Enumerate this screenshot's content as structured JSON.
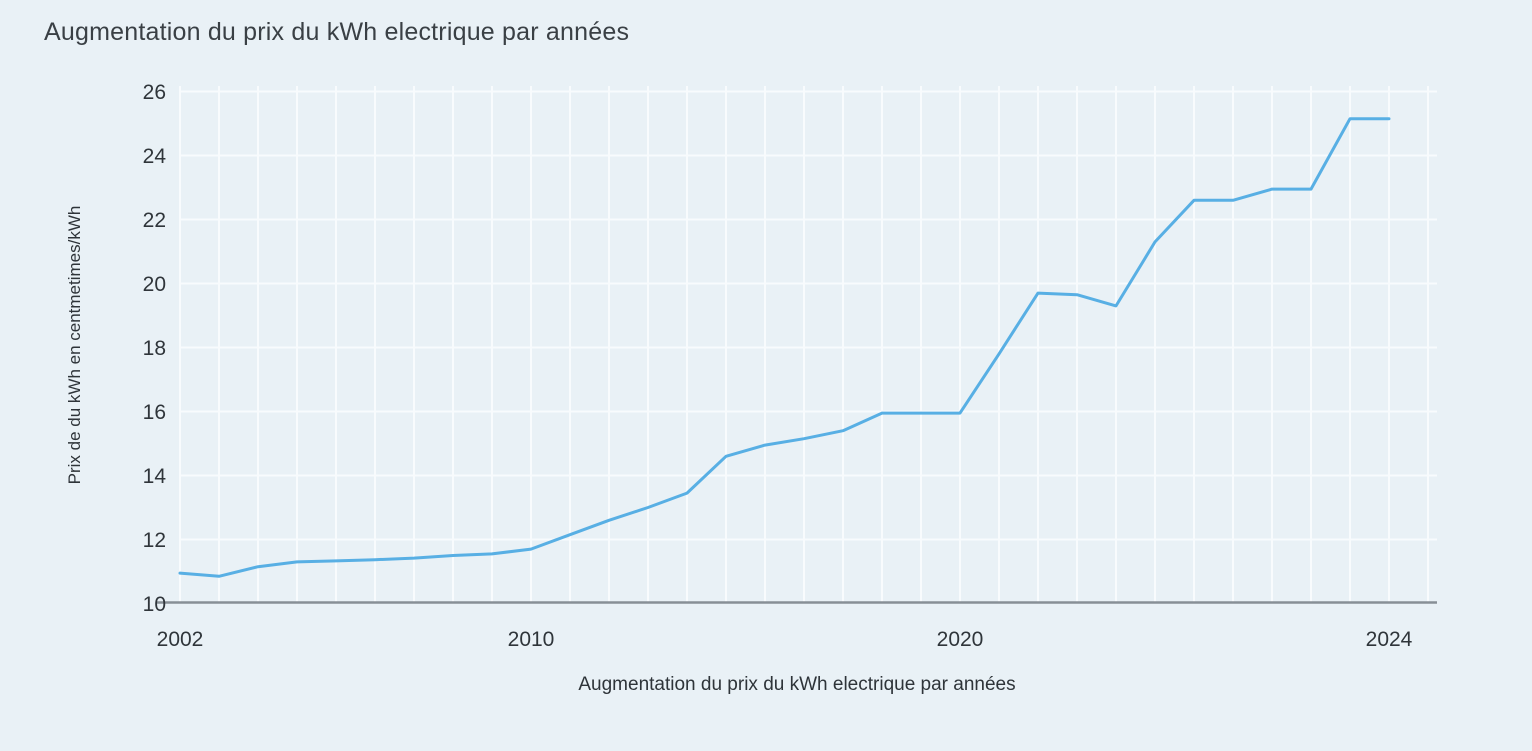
{
  "page": {
    "background": "#e9f1f6"
  },
  "colors": {
    "line": "#58afe4",
    "grid": "#f8fbfd",
    "axis_line": "#878f96",
    "title_text": "#3a4045",
    "tick_text": "#2f353a"
  },
  "chart_data": {
    "type": "line",
    "title": "Augmentation du prix du kWh electrique par années",
    "xlabel": "Augmentation du prix du kWh electrique par années",
    "ylabel": "Prix de du kWh en centmetimes/kWh",
    "ylim": [
      10,
      26
    ],
    "yticks": [
      10,
      12,
      14,
      16,
      18,
      20,
      22,
      24,
      26
    ],
    "xticks": [
      {
        "index": 0,
        "label": "2002"
      },
      {
        "index": 9,
        "label": "2010"
      },
      {
        "index": 20,
        "label": "2020"
      },
      {
        "index": 31,
        "label": "2024"
      }
    ],
    "grid": true,
    "legend_position": "none",
    "num_points": 32,
    "series": [
      {
        "color": "#58afe4",
        "values": [
          10.95,
          10.85,
          11.15,
          11.3,
          11.33,
          11.37,
          11.42,
          11.5,
          11.55,
          11.7,
          12.15,
          12.6,
          13.0,
          13.45,
          14.6,
          14.95,
          15.15,
          15.4,
          15.95,
          15.95,
          15.95,
          17.8,
          19.7,
          19.65,
          19.3,
          21.3,
          22.6,
          22.6,
          22.95,
          22.95,
          25.15,
          25.15
        ]
      }
    ]
  }
}
